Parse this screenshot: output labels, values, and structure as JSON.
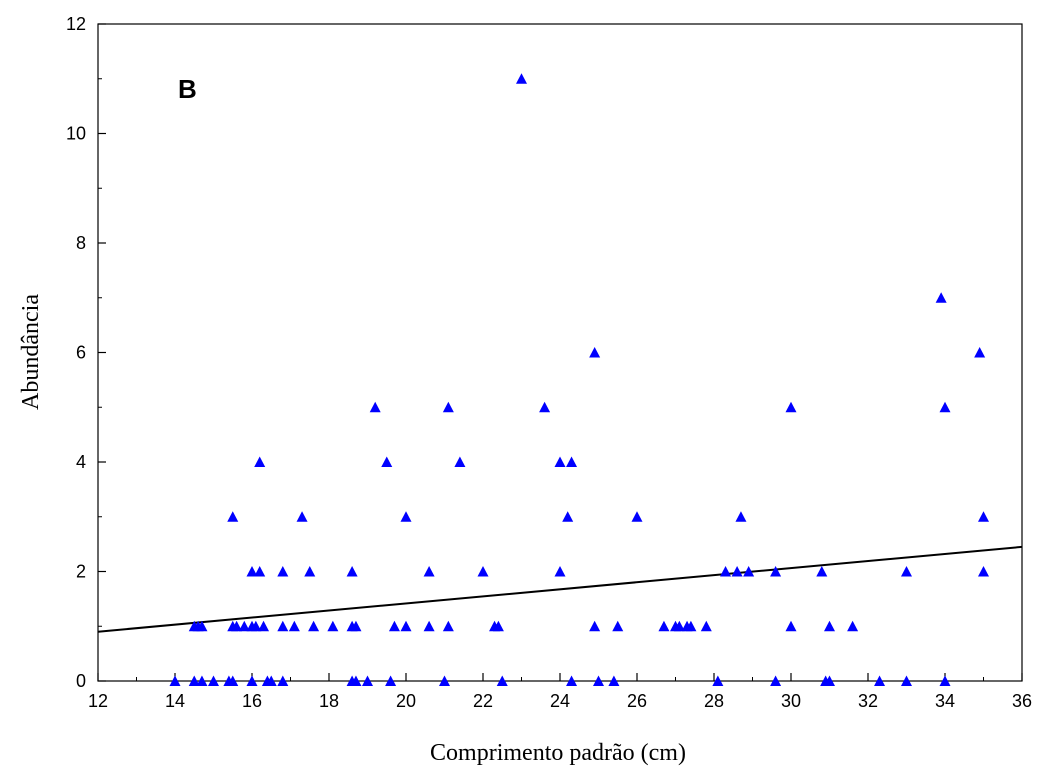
{
  "chart_data": {
    "type": "scatter",
    "panel_label": "B",
    "xlabel": "Comprimento padrão (cm)",
    "ylabel": "Abundância",
    "xlim": [
      12,
      36
    ],
    "ylim": [
      0,
      12
    ],
    "x_ticks": [
      12,
      14,
      16,
      18,
      20,
      22,
      24,
      26,
      28,
      30,
      32,
      34,
      36
    ],
    "y_ticks": [
      0,
      2,
      4,
      6,
      8,
      10,
      12
    ],
    "x_minor_step": 1,
    "y_minor_step": 1,
    "grid": false,
    "marker_color": "#0000ff",
    "marker_shape": "triangle",
    "line_color": "#000000",
    "trend_line": {
      "x": [
        12,
        36
      ],
      "y": [
        0.9,
        2.45
      ]
    },
    "points": [
      [
        14.0,
        0
      ],
      [
        14.5,
        0
      ],
      [
        14.7,
        0
      ],
      [
        15.0,
        0
      ],
      [
        15.4,
        0
      ],
      [
        15.5,
        0
      ],
      [
        16.0,
        0
      ],
      [
        16.4,
        0
      ],
      [
        16.5,
        0
      ],
      [
        16.8,
        0
      ],
      [
        18.6,
        0
      ],
      [
        18.7,
        0
      ],
      [
        19.0,
        0
      ],
      [
        19.6,
        0
      ],
      [
        21.0,
        0
      ],
      [
        22.5,
        0
      ],
      [
        24.3,
        0
      ],
      [
        25.0,
        0
      ],
      [
        25.4,
        0
      ],
      [
        28.1,
        0
      ],
      [
        29.6,
        0
      ],
      [
        30.9,
        0
      ],
      [
        31.0,
        0
      ],
      [
        32.3,
        0
      ],
      [
        33.0,
        0
      ],
      [
        34.0,
        0
      ],
      [
        14.5,
        1
      ],
      [
        14.6,
        1
      ],
      [
        14.7,
        1
      ],
      [
        15.5,
        1
      ],
      [
        15.6,
        1
      ],
      [
        15.8,
        1
      ],
      [
        16.0,
        1
      ],
      [
        16.1,
        1
      ],
      [
        16.3,
        1
      ],
      [
        16.8,
        1
      ],
      [
        17.1,
        1
      ],
      [
        17.6,
        1
      ],
      [
        18.1,
        1
      ],
      [
        18.6,
        1
      ],
      [
        18.7,
        1
      ],
      [
        19.7,
        1
      ],
      [
        20.0,
        1
      ],
      [
        20.6,
        1
      ],
      [
        21.1,
        1
      ],
      [
        22.3,
        1
      ],
      [
        22.4,
        1
      ],
      [
        24.9,
        1
      ],
      [
        25.5,
        1
      ],
      [
        26.7,
        1
      ],
      [
        27.0,
        1
      ],
      [
        27.1,
        1
      ],
      [
        27.3,
        1
      ],
      [
        27.4,
        1
      ],
      [
        27.8,
        1
      ],
      [
        30.0,
        1
      ],
      [
        31.0,
        1
      ],
      [
        31.6,
        1
      ],
      [
        16.0,
        2
      ],
      [
        16.2,
        2
      ],
      [
        16.8,
        2
      ],
      [
        17.5,
        2
      ],
      [
        18.6,
        2
      ],
      [
        20.6,
        2
      ],
      [
        22.0,
        2
      ],
      [
        24.0,
        2
      ],
      [
        28.3,
        2
      ],
      [
        28.6,
        2
      ],
      [
        28.9,
        2
      ],
      [
        29.6,
        2
      ],
      [
        30.8,
        2
      ],
      [
        33.0,
        2
      ],
      [
        35.0,
        2
      ],
      [
        15.5,
        3
      ],
      [
        17.3,
        3
      ],
      [
        20.0,
        3
      ],
      [
        24.2,
        3
      ],
      [
        26.0,
        3
      ],
      [
        28.7,
        3
      ],
      [
        35.0,
        3
      ],
      [
        16.2,
        4
      ],
      [
        19.5,
        4
      ],
      [
        21.4,
        4
      ],
      [
        24.0,
        4
      ],
      [
        24.3,
        4
      ],
      [
        19.2,
        5
      ],
      [
        21.1,
        5
      ],
      [
        23.6,
        5
      ],
      [
        30.0,
        5
      ],
      [
        34.0,
        5
      ],
      [
        24.9,
        6
      ],
      [
        34.9,
        6
      ],
      [
        33.9,
        7
      ],
      [
        23.0,
        11
      ]
    ]
  }
}
